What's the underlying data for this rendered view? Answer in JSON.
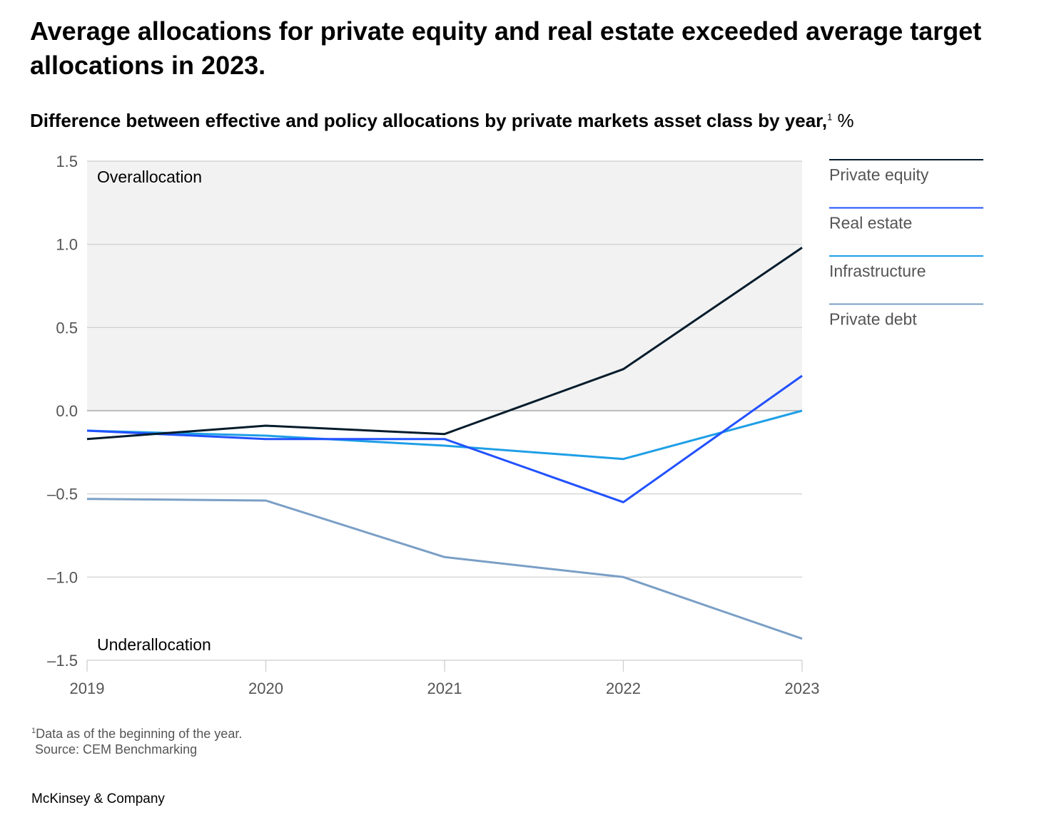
{
  "title": "Average allocations for private equity and real estate exceeded average target allocations in 2023.",
  "subtitle": "Difference between effective and policy allocations by private markets asset class by year,",
  "subtitle_footnote_mark": "1",
  "subtitle_unit": "%",
  "footnote": {
    "mark": "1",
    "text": "Data as of the beginning of the year.",
    "source": "Source: CEM Benchmarking"
  },
  "brand": "McKinsey & Company",
  "colors": {
    "overallocation_band": "#f2f2f2",
    "gridline": "#cccccc",
    "zero_line": "#999999"
  },
  "chart_data": {
    "type": "line",
    "x": [
      "2019",
      "2020",
      "2021",
      "2022",
      "2023"
    ],
    "ylim": [
      -1.5,
      1.5
    ],
    "yticks": [
      1.5,
      1.0,
      0.5,
      0.0,
      -0.5,
      -1.0,
      -1.5
    ],
    "ytick_labels": [
      "1.5",
      "1.0",
      "0.5",
      "0.0",
      "–0.5",
      "–1.0",
      "–1.5"
    ],
    "region_labels": {
      "above": "Overallocation",
      "below": "Underallocation"
    },
    "shaded_region": [
      0,
      1.5
    ],
    "legend_position": "right",
    "grid": true,
    "series": [
      {
        "name": "Private equity",
        "color": "#051c2c",
        "values": [
          -0.17,
          -0.09,
          -0.14,
          0.25,
          0.98
        ]
      },
      {
        "name": "Real estate",
        "color": "#2251ff",
        "values": [
          -0.12,
          -0.17,
          -0.17,
          -0.55,
          0.21
        ]
      },
      {
        "name": "Infrastructure",
        "color": "#1f9fe6",
        "values": [
          -0.12,
          -0.15,
          -0.21,
          -0.29,
          0.0
        ]
      },
      {
        "name": "Private debt",
        "color": "#7a9fc6",
        "values": [
          -0.53,
          -0.54,
          -0.88,
          -1.0,
          -1.37
        ]
      }
    ]
  }
}
